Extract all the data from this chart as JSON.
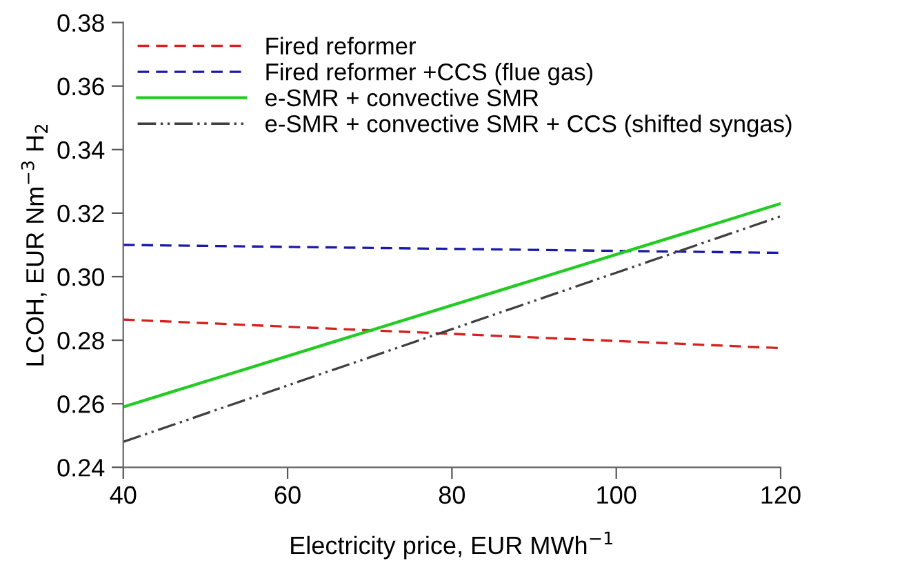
{
  "chart_data": {
    "type": "line",
    "xlabel": "Electricity price, EUR MWh$^{−1}$",
    "ylabel": "LCOH, EUR Nm$^{−3}$ H$_{2}$",
    "x": [
      40,
      120
    ],
    "xlim": [
      40,
      120
    ],
    "xticks": [
      40,
      60,
      80,
      100,
      120
    ],
    "ylim": [
      0.24,
      0.38
    ],
    "yticks": [
      0.24,
      0.26,
      0.28,
      {
        "value": 0.3,
        "label": "0.30"
      },
      0.32,
      0.34,
      0.36,
      0.38
    ],
    "grid": false,
    "legend": "top left",
    "marker": "none",
    "series": [
      {
        "name": "Fired reformer",
        "color": "#d62020",
        "values": [
          0.2865,
          0.2775
        ],
        "line_style": "dashed"
      },
      {
        "name": "Fired reformer +CCS (flue gas)",
        "color": "#1a1aa8",
        "values": [
          0.31,
          0.3075
        ],
        "line_style": "dashed"
      },
      {
        "name": "e-SMR + convective SMR",
        "color": "#22cc22",
        "values": [
          0.259,
          0.323
        ],
        "line_style": "solid"
      },
      {
        "name": "e-SMR + convective SMR + CCS (shifted syngas)",
        "color": "#404040",
        "values": [
          0.248,
          0.319
        ],
        "line_style": "dashdot"
      }
    ]
  }
}
